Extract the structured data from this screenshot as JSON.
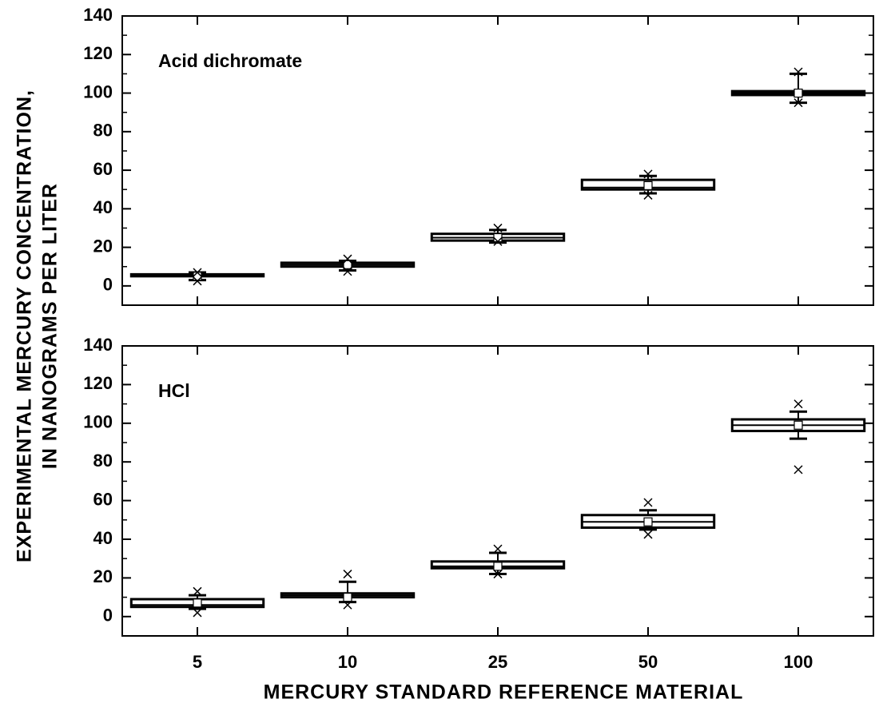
{
  "chart_data": [
    {
      "type": "box",
      "annotation": "Acid dichromate",
      "ylim": [
        -10,
        140
      ],
      "yticks": [
        0,
        20,
        40,
        60,
        80,
        100,
        120,
        140
      ],
      "color": "#000000",
      "ylabel": [
        "EXPERIMENTAL MERCURY CONCENTRATION,",
        "IN NANOGRAMS PER LITER"
      ],
      "boxes": [
        {
          "whisker_low": 3,
          "q1": 5,
          "median": 5.5,
          "q3": 6,
          "whisker_high": 7,
          "mean": 5,
          "outliers": [
            2.5,
            7
          ]
        },
        {
          "whisker_low": 8,
          "q1": 10,
          "median": 11,
          "q3": 12,
          "whisker_high": 13,
          "mean": 11,
          "outliers": [
            7.5,
            14
          ]
        },
        {
          "whisker_low": 22.5,
          "q1": 23.5,
          "median": 25,
          "q3": 27,
          "whisker_high": 29,
          "mean": 25,
          "outliers": [
            23,
            30
          ]
        },
        {
          "whisker_low": 48,
          "q1": 50,
          "median": 51,
          "q3": 55,
          "whisker_high": 57,
          "mean": 52,
          "outliers": [
            47,
            58
          ]
        },
        {
          "whisker_low": 95,
          "q1": 99,
          "median": 100,
          "q3": 101,
          "whisker_high": 110,
          "mean": 100,
          "outliers": [
            95,
            111
          ]
        }
      ]
    },
    {
      "type": "box",
      "annotation": "HCl",
      "ylim": [
        -10,
        140
      ],
      "yticks": [
        0,
        20,
        40,
        60,
        80,
        100,
        120,
        140
      ],
      "color": "#000000",
      "xlabel": "MERCURY STANDARD REFERENCE MATERIAL",
      "categories": [
        "5",
        "10",
        "25",
        "50",
        "100"
      ],
      "boxes": [
        {
          "whisker_low": 4,
          "q1": 5,
          "median": 6,
          "q3": 9,
          "whisker_high": 11,
          "mean": 7,
          "outliers": [
            2,
            13
          ]
        },
        {
          "whisker_low": 7.5,
          "q1": 10,
          "median": 11,
          "q3": 12,
          "whisker_high": 18,
          "mean": 10,
          "outliers": [
            6,
            22
          ]
        },
        {
          "whisker_low": 22,
          "q1": 25,
          "median": 26,
          "q3": 28.5,
          "whisker_high": 33,
          "mean": 26,
          "outliers": [
            22,
            35
          ]
        },
        {
          "whisker_low": 45,
          "q1": 46,
          "median": 49,
          "q3": 52.5,
          "whisker_high": 55,
          "mean": 49,
          "outliers": [
            42.5,
            59
          ]
        },
        {
          "whisker_low": 92,
          "q1": 96,
          "median": 99,
          "q3": 102,
          "whisker_high": 106,
          "mean": 99,
          "outliers": [
            76,
            110
          ]
        }
      ]
    }
  ]
}
